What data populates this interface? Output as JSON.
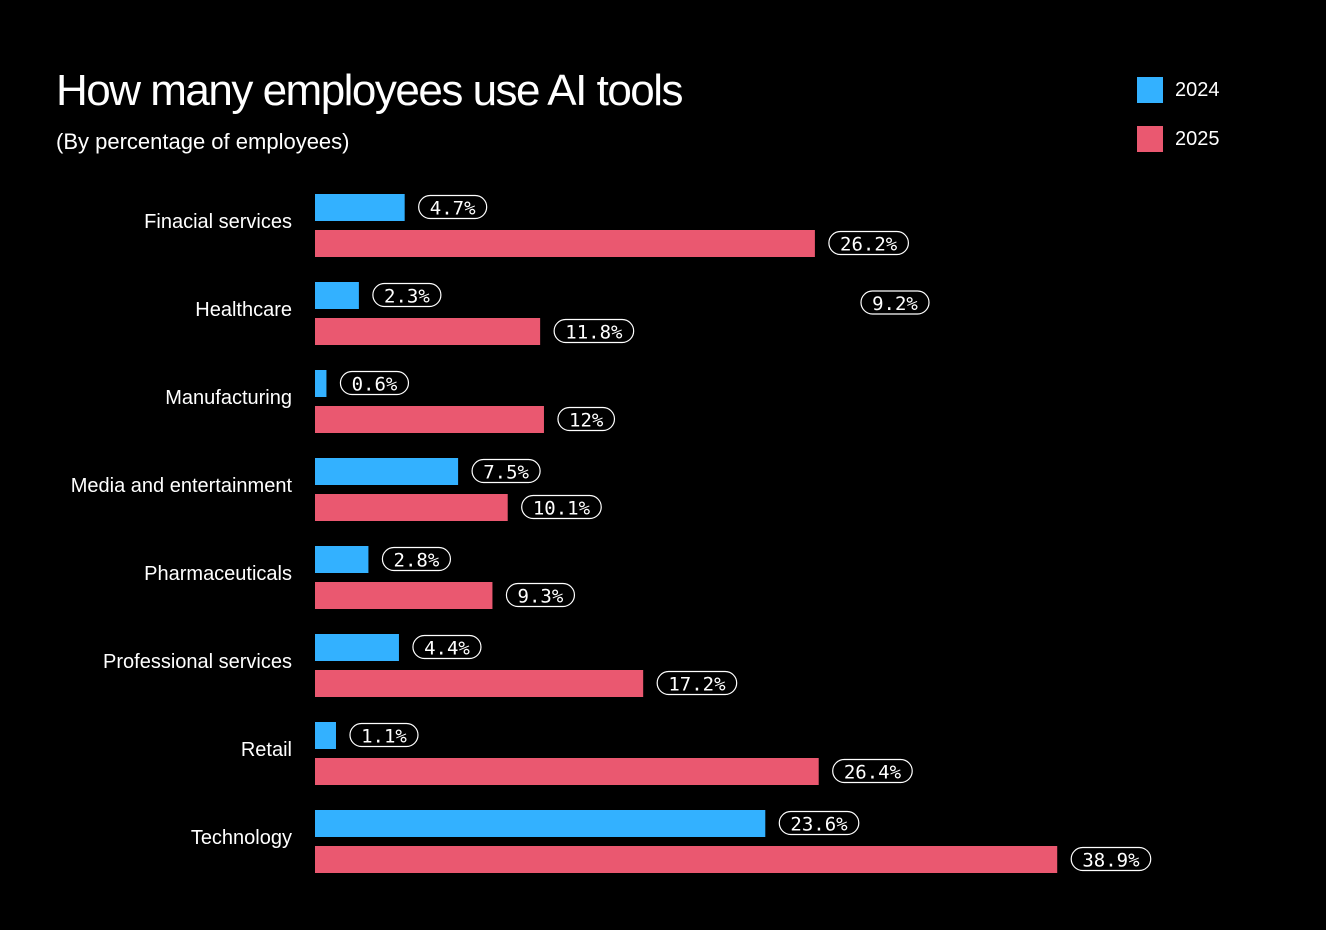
{
  "title": "How many employees use AI tools",
  "subtitle": "(By percentage of employees)",
  "colors": {
    "background": "#000000",
    "text": "#ffffff",
    "series_2024": "#33b1ff",
    "series_2025": "#ea5870"
  },
  "legend": {
    "placement": "top-right",
    "items": [
      {
        "label": "2024",
        "color": "#33b1ff"
      },
      {
        "label": "2025",
        "color": "#ea5870"
      }
    ]
  },
  "stray_label": "9.2%",
  "chart_data": {
    "type": "bar",
    "orientation": "horizontal",
    "title": "How many employees use AI tools",
    "subtitle": "(By percentage of employees)",
    "categories": [
      "Finacial services",
      "Healthcare",
      "Manufacturing",
      "Media and entertainment",
      "Pharmaceuticals",
      "Professional services",
      "Retail",
      "Technology"
    ],
    "series": [
      {
        "name": "2024",
        "color": "#33b1ff",
        "values": [
          4.7,
          2.3,
          0.6,
          7.5,
          2.8,
          4.4,
          1.1,
          23.6
        ],
        "labels": [
          "4.7%",
          "2.3%",
          "0.6%",
          "7.5%",
          "2.8%",
          "4.4%",
          "1.1%",
          "23.6%"
        ]
      },
      {
        "name": "2025",
        "color": "#ea5870",
        "values": [
          26.2,
          11.8,
          12,
          10.1,
          9.3,
          17.2,
          26.4,
          38.9
        ],
        "labels": [
          "26.2%",
          "11.8%",
          "12%",
          "10.1%",
          "9.3%",
          "17.2%",
          "26.4%",
          "38.9%"
        ]
      }
    ],
    "xlim": [
      0,
      40
    ],
    "grid": false,
    "legend": "top-right"
  }
}
